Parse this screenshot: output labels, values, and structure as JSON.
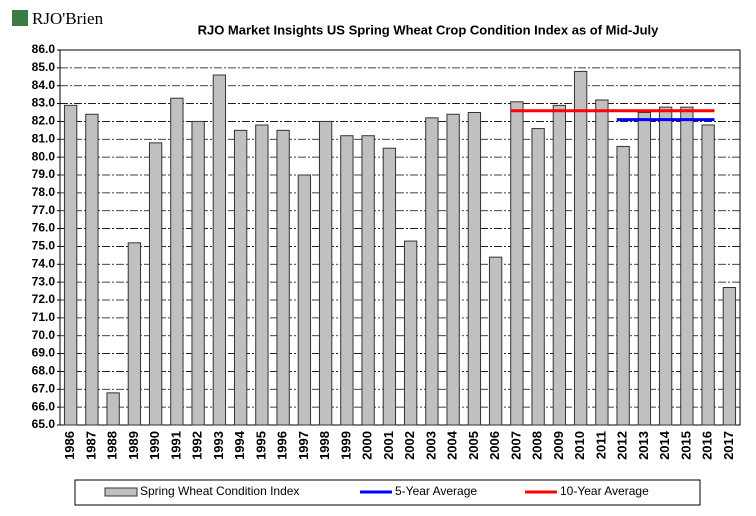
{
  "chart_data": {
    "type": "bar",
    "logo": "RJO'Brien",
    "title": "RJO Market Insights US Spring Wheat Crop Condition Index as of Mid-July",
    "categories": [
      "1986",
      "1987",
      "1988",
      "1989",
      "1990",
      "1991",
      "1992",
      "1993",
      "1994",
      "1995",
      "1996",
      "1997",
      "1998",
      "1999",
      "2000",
      "2001",
      "2002",
      "2003",
      "2004",
      "2005",
      "2006",
      "2007",
      "2008",
      "2009",
      "2010",
      "2011",
      "2012",
      "2013",
      "2014",
      "2015",
      "2016",
      "2017"
    ],
    "series": [
      {
        "name": "Spring Wheat Condition Index",
        "type": "bar",
        "color": "#c0c0c0",
        "values": [
          82.9,
          82.4,
          66.8,
          75.2,
          80.8,
          83.3,
          82.0,
          84.6,
          81.5,
          81.8,
          81.5,
          79.0,
          82.0,
          81.2,
          81.2,
          80.5,
          75.3,
          82.2,
          82.4,
          82.5,
          74.4,
          83.1,
          81.6,
          82.9,
          84.8,
          83.2,
          80.6,
          82.5,
          82.8,
          82.8,
          81.8,
          72.7
        ]
      },
      {
        "name": "5-Year Average",
        "type": "line",
        "color": "#0000ff",
        "values": [
          null,
          null,
          null,
          null,
          null,
          null,
          null,
          null,
          null,
          null,
          null,
          null,
          null,
          null,
          null,
          null,
          null,
          null,
          null,
          null,
          null,
          null,
          null,
          null,
          null,
          null,
          82.1,
          82.1,
          82.1,
          82.1,
          82.1,
          null
        ]
      },
      {
        "name": "10-Year Average",
        "type": "line",
        "color": "#ff0000",
        "values": [
          null,
          null,
          null,
          null,
          null,
          null,
          null,
          null,
          null,
          null,
          null,
          null,
          null,
          null,
          null,
          null,
          null,
          null,
          null,
          null,
          null,
          82.6,
          82.6,
          82.6,
          82.6,
          82.6,
          82.6,
          82.6,
          82.6,
          82.6,
          82.6,
          null
        ]
      }
    ],
    "ylim": [
      65,
      86
    ],
    "yticks": [
      {
        "value": 65,
        "label": "65.0"
      },
      {
        "value": 66,
        "label": "66.0"
      },
      {
        "value": 67,
        "label": "67.0"
      },
      {
        "value": 68,
        "label": "68.0"
      },
      {
        "value": 69,
        "label": "69.0"
      },
      {
        "value": 70,
        "label": "70.0"
      },
      {
        "value": 71,
        "label": "71.0"
      },
      {
        "value": 72,
        "label": "72.0"
      },
      {
        "value": 73,
        "label": "73.0"
      },
      {
        "value": 74,
        "label": "74.0"
      },
      {
        "value": 75,
        "label": "75.0"
      },
      {
        "value": 76,
        "label": "76.0"
      },
      {
        "value": 77,
        "label": "77.0"
      },
      {
        "value": 78,
        "label": "78.0"
      },
      {
        "value": 79,
        "label": "79.0"
      },
      {
        "value": 80,
        "label": "80.0"
      },
      {
        "value": 81,
        "label": "81.0"
      },
      {
        "value": 82,
        "label": "82.0"
      },
      {
        "value": 83,
        "label": "83.0"
      },
      {
        "value": 84,
        "label": "84.0"
      },
      {
        "value": 85,
        "label": "85.0"
      },
      {
        "value": 86,
        "label": "86.0"
      }
    ],
    "grid": true
  }
}
